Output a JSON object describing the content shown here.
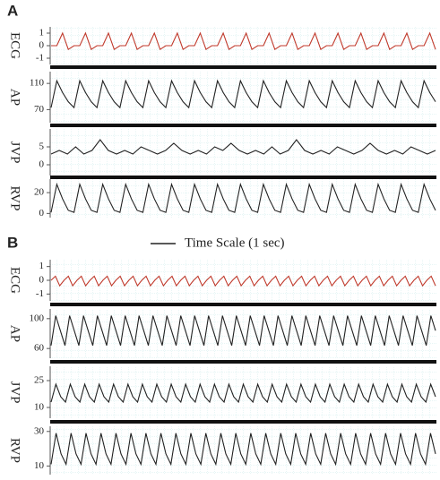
{
  "figure_labels": [
    "A",
    "B"
  ],
  "time_scale_label": "Time Scale (1 sec)",
  "chart_data": [
    {
      "type": "line",
      "ylabel": "ECG",
      "ylim": [
        -1.5,
        1.5
      ],
      "yticks": [
        1,
        0,
        -1
      ],
      "series": [
        {
          "color": "#c0392b",
          "values": [
            0,
            0,
            1,
            -0.3,
            0,
            0,
            1,
            -0.3,
            0,
            0,
            1,
            -0.3,
            0,
            0,
            1,
            -0.3,
            0,
            0,
            1,
            -0.3,
            0,
            0,
            1,
            -0.3,
            0,
            0,
            1,
            -0.3,
            0,
            0,
            1,
            -0.3,
            0,
            0,
            1,
            -0.3,
            0,
            0,
            1,
            -0.3,
            0,
            0,
            1,
            -0.3,
            0,
            0,
            1,
            -0.3,
            0,
            0,
            1,
            -0.3,
            0,
            0,
            1,
            -0.3,
            0,
            0,
            1,
            -0.3,
            0,
            0,
            1,
            -0.3,
            0,
            0,
            1,
            -0.3
          ]
        }
      ]
    },
    {
      "type": "line",
      "ylabel": "AP",
      "ylim": [
        50,
        128
      ],
      "yticks": [
        110,
        70
      ],
      "series": [
        {
          "color": "#222222",
          "values": [
            73,
            114,
            96,
            82,
            73,
            114,
            96,
            82,
            73,
            114,
            96,
            82,
            73,
            114,
            96,
            82,
            73,
            114,
            96,
            82,
            73,
            114,
            96,
            82,
            73,
            114,
            96,
            82,
            73,
            114,
            96,
            82,
            73,
            114,
            96,
            82,
            73,
            114,
            96,
            82,
            73,
            114,
            96,
            82,
            73,
            114,
            96,
            82,
            73,
            114,
            96,
            82,
            73,
            114,
            96,
            82,
            73,
            114,
            96,
            82,
            73,
            114,
            96,
            82,
            73,
            114,
            96,
            82
          ]
        }
      ]
    },
    {
      "type": "line",
      "ylabel": "JVP",
      "ylim": [
        -3,
        10
      ],
      "yticks": [
        5,
        0
      ],
      "series": [
        {
          "color": "#222222",
          "values": [
            3,
            4,
            3,
            5,
            3,
            4,
            7,
            4,
            3,
            4,
            3,
            5,
            4,
            3,
            4,
            6,
            4,
            3,
            4,
            3,
            5,
            4,
            6,
            4,
            3,
            4,
            3,
            5,
            3,
            4,
            7,
            4,
            3,
            4,
            3,
            5,
            4,
            3,
            4,
            6,
            4,
            3,
            4,
            3,
            5,
            4,
            3,
            4
          ]
        }
      ]
    },
    {
      "type": "line",
      "ylabel": "RVP",
      "ylim": [
        -4,
        33
      ],
      "yticks": [
        20,
        0
      ],
      "series": [
        {
          "color": "#222222",
          "values": [
            1,
            28,
            14,
            3,
            1,
            28,
            14,
            3,
            1,
            28,
            14,
            3,
            1,
            28,
            14,
            3,
            1,
            28,
            14,
            3,
            1,
            28,
            14,
            3,
            1,
            28,
            14,
            3,
            1,
            28,
            14,
            3,
            1,
            28,
            14,
            3,
            1,
            28,
            14,
            3,
            1,
            28,
            14,
            3,
            1,
            28,
            14,
            3,
            1,
            28,
            14,
            3,
            1,
            28,
            14,
            3,
            1,
            28,
            14,
            3,
            1,
            28,
            14,
            3,
            1,
            28,
            14,
            3
          ]
        }
      ]
    },
    {
      "type": "line",
      "ylabel": "ECG",
      "ylim": [
        -1.5,
        1.5
      ],
      "yticks": [
        1,
        0,
        -1
      ],
      "series": [
        {
          "color": "#c0392b",
          "values": [
            0,
            0.3,
            -0.4,
            0,
            0.3,
            -0.4,
            0,
            0.3,
            -0.4,
            0,
            0.3,
            -0.4,
            0,
            0.3,
            -0.4,
            0,
            0.3,
            -0.4,
            0,
            0.3,
            -0.4,
            0,
            0.3,
            -0.4,
            0,
            0.3,
            -0.4,
            0,
            0.3,
            -0.4,
            0,
            0.3,
            -0.4,
            0,
            0.3,
            -0.4,
            0,
            0.3,
            -0.4,
            0,
            0.3,
            -0.4,
            0,
            0.3,
            -0.4,
            0,
            0.3,
            -0.4,
            0,
            0.3,
            -0.4,
            0,
            0.3,
            -0.4,
            0,
            0.3,
            -0.4,
            0,
            0.3,
            -0.4,
            0,
            0.3,
            -0.4,
            0,
            0.3,
            -0.4,
            0,
            0.3,
            -0.4,
            0,
            0.3,
            -0.4,
            0,
            0.3,
            -0.4,
            0,
            0.3,
            -0.4,
            0,
            0.3,
            -0.4,
            0,
            0.3,
            -0.4,
            0,
            0.3,
            -0.4,
            0,
            0.3,
            -0.4
          ]
        }
      ]
    },
    {
      "type": "line",
      "ylabel": "AP",
      "ylim": [
        47,
        113
      ],
      "yticks": [
        100,
        60
      ],
      "series": [
        {
          "color": "#222222",
          "values": [
            64,
            104,
            84,
            64,
            104,
            84,
            64,
            104,
            84,
            64,
            104,
            84,
            64,
            104,
            84,
            64,
            104,
            84,
            64,
            104,
            84,
            64,
            104,
            84,
            64,
            104,
            84,
            64,
            104,
            84,
            64,
            104,
            84,
            64,
            104,
            84,
            64,
            104,
            84,
            64,
            104,
            84,
            64,
            104,
            84,
            64,
            104,
            84,
            64,
            104,
            84,
            64,
            104,
            84,
            64,
            104,
            84,
            64,
            104,
            84,
            64,
            104,
            84,
            64,
            104,
            84,
            64,
            104,
            84,
            64,
            104,
            84,
            64,
            104,
            84,
            64,
            104,
            84,
            64,
            104,
            84,
            64,
            104,
            84
          ]
        }
      ]
    },
    {
      "type": "line",
      "ylabel": "JVP",
      "ylim": [
        4,
        33
      ],
      "yticks": [
        25,
        10
      ],
      "series": [
        {
          "color": "#222222",
          "values": [
            13,
            23,
            16,
            13,
            23,
            16,
            13,
            23,
            16,
            13,
            23,
            16,
            13,
            23,
            16,
            13,
            23,
            16,
            13,
            23,
            16,
            13,
            23,
            16,
            13,
            23,
            16,
            13,
            23,
            16,
            13,
            23,
            16,
            13,
            23,
            16,
            13,
            23,
            16,
            13,
            23,
            16,
            13,
            23,
            16,
            13,
            23,
            16,
            13,
            23,
            16,
            13,
            23,
            16,
            13,
            23,
            16,
            13,
            23,
            16,
            13,
            23,
            16,
            13,
            23,
            16,
            13,
            23,
            16,
            13,
            23,
            16,
            13,
            23,
            16,
            13,
            23,
            16,
            13,
            23,
            16
          ]
        }
      ]
    },
    {
      "type": "line",
      "ylabel": "RVP",
      "ylim": [
        5,
        33
      ],
      "yticks": [
        30,
        10
      ],
      "series": [
        {
          "color": "#222222",
          "values": [
            11,
            29,
            17,
            11,
            29,
            17,
            11,
            29,
            17,
            11,
            29,
            17,
            11,
            29,
            17,
            11,
            29,
            17,
            11,
            29,
            17,
            11,
            29,
            17,
            11,
            29,
            17,
            11,
            29,
            17,
            11,
            29,
            17,
            11,
            29,
            17,
            11,
            29,
            17,
            11,
            29,
            17,
            11,
            29,
            17,
            11,
            29,
            17,
            11,
            29,
            17,
            11,
            29,
            17,
            11,
            29,
            17,
            11,
            29,
            17,
            11,
            29,
            17,
            11,
            29,
            17,
            11,
            29,
            17,
            11,
            29,
            17,
            11,
            29,
            17,
            11,
            29,
            17
          ]
        }
      ]
    }
  ]
}
